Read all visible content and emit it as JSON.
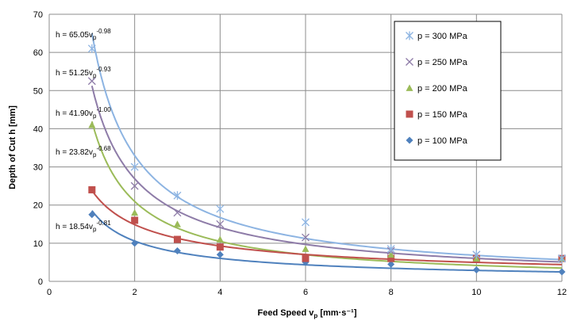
{
  "chart_data": {
    "type": "scatter",
    "title": "",
    "xlabel": {
      "main": "Feed Speed v",
      "sub": "p",
      "units": " [mm·s⁻¹]"
    },
    "ylabel": "Depth of Cut h [mm]",
    "xlim": [
      0,
      12
    ],
    "ylim": [
      0,
      70
    ],
    "xticks": [
      0,
      2,
      4,
      6,
      8,
      10,
      12
    ],
    "yticks": [
      0,
      10,
      20,
      30,
      40,
      50,
      60,
      70
    ],
    "grid": true,
    "legend_position": "top-right",
    "x": [
      1,
      2,
      3,
      4,
      6,
      8,
      10,
      12
    ],
    "series": [
      {
        "name": "p = 300 MPa",
        "marker": "asterisk",
        "color": "#8DB4E2",
        "values": [
          61,
          30,
          22.5,
          19,
          15.5,
          8.5,
          7,
          6
        ],
        "fit": {
          "a": 65.05,
          "b": -0.98
        },
        "equation": {
          "base": "h = 65.05v",
          "sub": "p",
          "sup": "-0.98"
        }
      },
      {
        "name": "p = 250 MPa",
        "marker": "x",
        "color": "#8E7CA8",
        "values": [
          52.5,
          25,
          18,
          15,
          11.5,
          8,
          7,
          6
        ],
        "fit": {
          "a": 51.25,
          "b": -0.93
        },
        "equation": {
          "base": "h = 51.25v",
          "sub": "p",
          "sup": "-0.93"
        }
      },
      {
        "name": "p = 200 MPa",
        "marker": "triangle",
        "color": "#9BBB59",
        "values": [
          41,
          18,
          15,
          11,
          8.5,
          7,
          6,
          6
        ],
        "fit": {
          "a": 41.9,
          "b": -1.0
        },
        "equation": {
          "base": "h = 41.90v",
          "sub": "p",
          "sup": "-1.00"
        }
      },
      {
        "name": "p = 150 MPa",
        "marker": "square",
        "color": "#C0504D",
        "values": [
          24,
          16,
          11,
          9,
          6,
          6,
          6,
          6
        ],
        "fit": {
          "a": 23.82,
          "b": -0.68
        },
        "equation": {
          "base": "h = 23.82v",
          "sub": "p",
          "sup": "-0.68"
        }
      },
      {
        "name": "p = 100 MPa",
        "marker": "diamond",
        "color": "#4F81BD",
        "values": [
          17.5,
          10,
          8,
          7,
          5,
          4.5,
          3,
          2.5
        ],
        "fit": {
          "a": 18.54,
          "b": -0.81
        },
        "equation": {
          "base": "h = 18.54v",
          "sub": "p",
          "sup": "-0.81"
        }
      }
    ]
  }
}
